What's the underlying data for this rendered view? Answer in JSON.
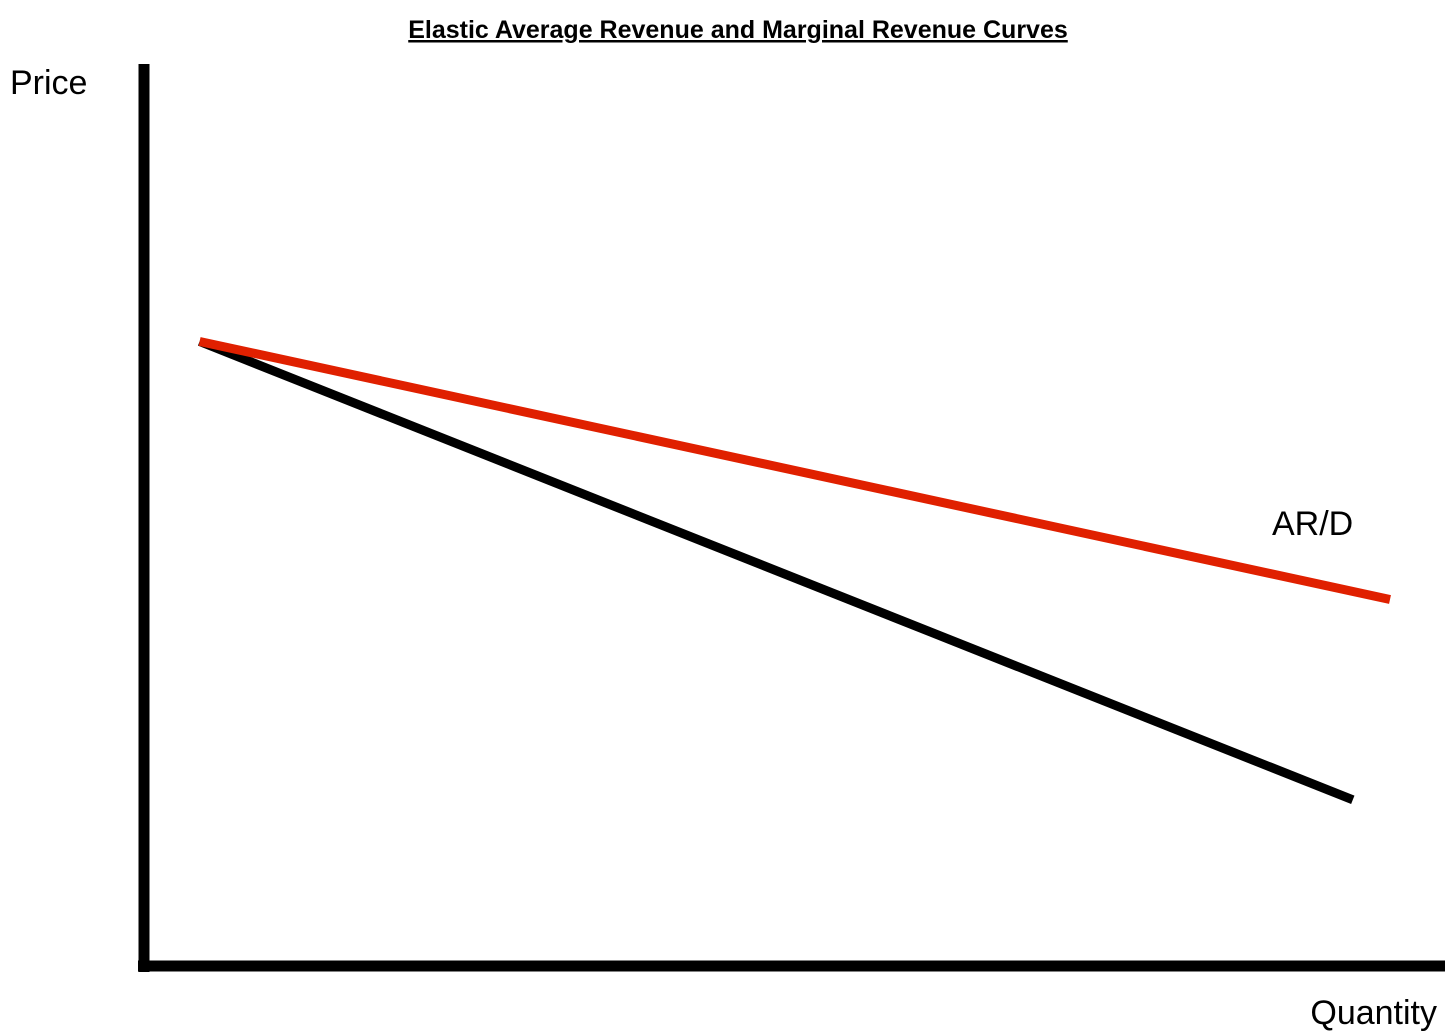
{
  "chart_data": {
    "type": "line",
    "title": "Elastic Average Revenue and Marginal Revenue Curves",
    "xlabel": "Quantity",
    "ylabel": "Price",
    "xlim": [
      0,
      100
    ],
    "ylim": [
      0,
      100
    ],
    "grid": false,
    "legend": "none",
    "series": [
      {
        "name": "AR/D",
        "color": "#e02000",
        "x": [
          4,
          100
        ],
        "y": [
          69.5,
          40.5
        ]
      },
      {
        "color": "#000000",
        "x": [
          4,
          97
        ],
        "y": [
          69.5,
          18
        ]
      }
    ]
  }
}
